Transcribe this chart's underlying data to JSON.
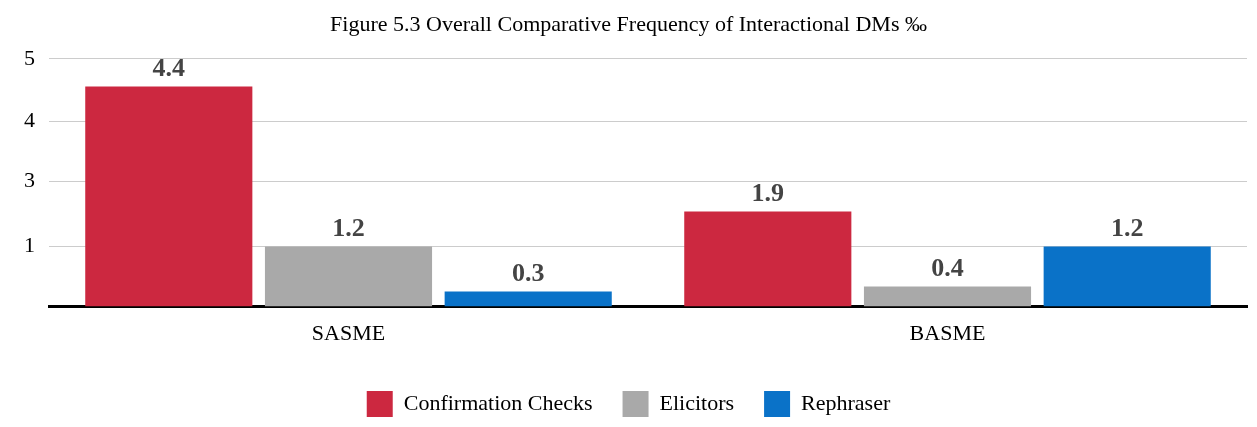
{
  "chart_data": {
    "type": "bar",
    "title": "Figure 5.3 Overall Comparative Frequency of Interactional DMs ‰",
    "categories": [
      "SASME",
      "BASME"
    ],
    "series": [
      {
        "name": "Confirmation Checks",
        "color": "#cc2840",
        "values": [
          4.4,
          1.9
        ]
      },
      {
        "name": "Elicitors",
        "color": "#a9a9a9",
        "values": [
          1.2,
          0.4
        ]
      },
      {
        "name": "Rephraser",
        "color": "#0a72c8",
        "values": [
          0.3,
          1.2
        ]
      }
    ],
    "ylim": [
      0,
      5
    ],
    "yticks": [
      {
        "value": 1.2,
        "label": "1"
      },
      {
        "value": 2.5,
        "label": "3"
      },
      {
        "value": 3.7,
        "label": "4"
      },
      {
        "value": 4.95,
        "label": "5"
      }
    ],
    "grid": "y",
    "legend": "bottom",
    "data_labels": true
  }
}
